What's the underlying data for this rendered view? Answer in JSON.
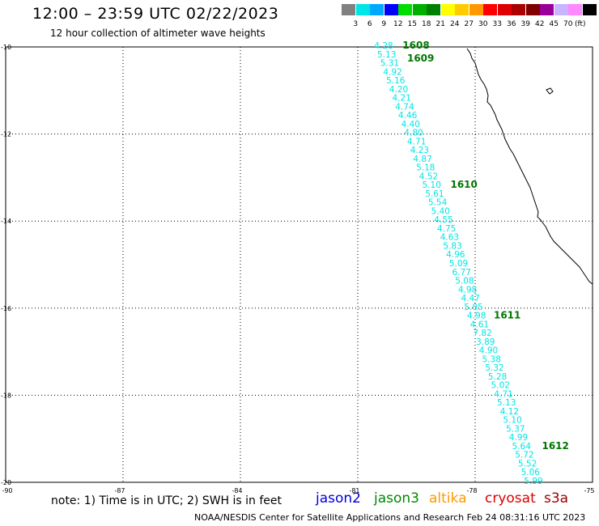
{
  "header": {
    "title": "12:00 – 23:59 UTC 02/22/2023",
    "subtitle": "12 hour collection of altimeter wave heights"
  },
  "legend": {
    "colors": [
      "#808080",
      "#00e5e5",
      "#00a8ff",
      "#0000ff",
      "#00dd00",
      "#00b000",
      "#008000",
      "#ffff00",
      "#ffcc00",
      "#ff9900",
      "#ff0000",
      "#dd0000",
      "#aa0000",
      "#800000",
      "#990099",
      "#c8b4ff",
      "#ff88ff",
      "#000000"
    ],
    "labels": [
      "3",
      "6",
      "9",
      "12",
      "15",
      "18",
      "21",
      "24",
      "27",
      "30",
      "33",
      "36",
      "39",
      "42",
      "45",
      "70"
    ],
    "unit": "(ft)"
  },
  "map": {
    "lon_min": -90,
    "lon_max": -75,
    "lat_min": -20,
    "lat_max": -10,
    "x_ticks": [
      "-90",
      "-87",
      "-84",
      "-81",
      "-78",
      "-75"
    ],
    "y_ticks": [
      "-10",
      "-12",
      "-14",
      "-16",
      "-18",
      "-20"
    ]
  },
  "track": {
    "color": "#00e5e5",
    "swh_values": [
      "4.28",
      "5.13",
      "5.31",
      "4.92",
      "5.16",
      "4.20",
      "4.21",
      "4.74",
      "4.46",
      "4.40",
      "4.80",
      "4.71",
      "4.23",
      "4.87",
      "5.18",
      "4.52",
      "5.10",
      "5.61",
      "5.54",
      "5.40",
      "4.55",
      "4.75",
      "4.63",
      "5.83",
      "4.96",
      "5.09",
      "6.77",
      "5.08",
      "4.98",
      "4.47",
      "5.05",
      "4.98",
      "4.61",
      "7.82",
      "3.89",
      "4.90",
      "5.38",
      "5.32",
      "5.28",
      "5.02",
      "4.71",
      "5.13",
      "4.12",
      "5.10",
      "5.37",
      "4.99",
      "5.64",
      "5.72",
      "5.52",
      "5.06",
      "5.99"
    ],
    "time_color": "#007700",
    "time_labels": [
      "1608",
      "1609",
      "1610",
      "1611",
      "1612"
    ]
  },
  "footer": {
    "note": "note:  1) Time is in UTC;  2) SWH is in feet",
    "satellites": [
      {
        "name": "jason2",
        "color": "#0000dd"
      },
      {
        "name": "jason3",
        "color": "#008800"
      },
      {
        "name": "altika",
        "color": "#ff9900"
      },
      {
        "name": "cryosat",
        "color": "#dd0000"
      },
      {
        "name": "s3a",
        "color": "#990000"
      }
    ],
    "credit": "NOAA/NESDIS Center for Satellite Applications and Research    Feb 24 08:31:16 UTC 2023"
  }
}
